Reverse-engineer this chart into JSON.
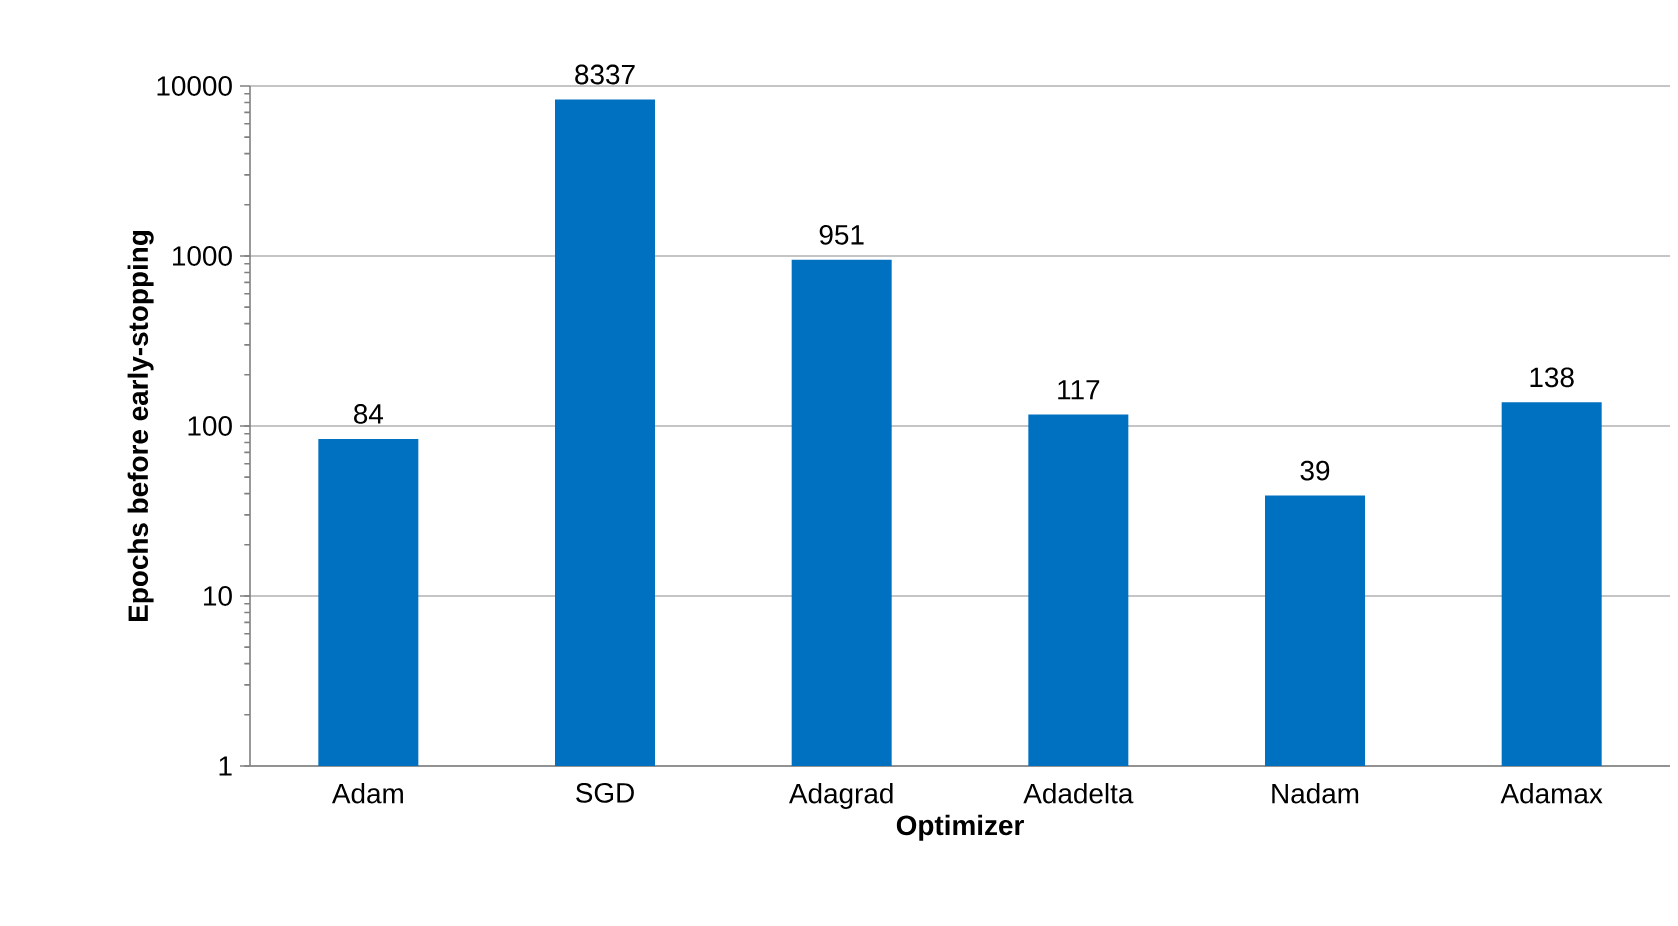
{
  "chart_data": {
    "type": "bar",
    "xlabel": "Optimizer",
    "ylabel": "Epochs before early-stopping",
    "categories": [
      "Adam",
      "SGD",
      "Adagrad",
      "Adadelta",
      "Nadam",
      "Adamax"
    ],
    "values": [
      84,
      8337,
      951,
      117,
      39,
      138
    ],
    "color": "#0070c0",
    "log": true,
    "ylim": [
      1,
      10000
    ],
    "yticks": [
      1,
      10,
      100,
      1000,
      10000
    ],
    "grid": "y",
    "data_labels": true
  }
}
